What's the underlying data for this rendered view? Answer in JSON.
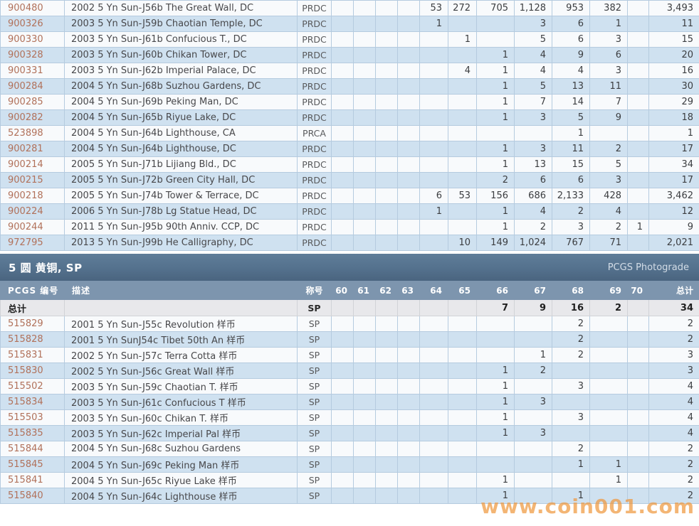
{
  "watermark": "www.coin001.com",
  "colors": {
    "stripe_white": "#f8fafc",
    "stripe_blue": "#cfe1f0",
    "cell_border": "#b5cbdf",
    "pcgs_link": "#b1715a",
    "band_top": "#5f7d99",
    "band_bottom": "#4a647f",
    "header_bg": "#7d95ae",
    "totals_bg": "#e8e8eb",
    "watermark_orange": "#ef9940"
  },
  "section": {
    "title": "5 圆 黄铜, SP",
    "photograde": "PCGS Photograde"
  },
  "table1": {
    "rows": [
      {
        "pcgs": "900480",
        "desc": "2002 5 Yn Sun-J56b The Great Wall, DC",
        "desig": "PRDC",
        "g64": "53",
        "g65": "272",
        "g66": "705",
        "g67": "1,128",
        "g68": "953",
        "g69": "382",
        "total": "3,493"
      },
      {
        "pcgs": "900326",
        "desc": "2003 5 Yn Sun-J59b Chaotian Temple, DC",
        "desig": "PRDC",
        "g64": "1",
        "g67": "3",
        "g68": "6",
        "g69": "1",
        "total": "11"
      },
      {
        "pcgs": "900330",
        "desc": "2003 5 Yn Sun-J61b Confucious T., DC",
        "desig": "PRDC",
        "g65": "1",
        "g67": "5",
        "g68": "6",
        "g69": "3",
        "total": "15"
      },
      {
        "pcgs": "900328",
        "desc": "2003 5 Yn Sun-J60b Chikan Tower, DC",
        "desig": "PRDC",
        "g66": "1",
        "g67": "4",
        "g68": "9",
        "g69": "6",
        "total": "20"
      },
      {
        "pcgs": "900331",
        "desc": "2003 5 Yn Sun-J62b Imperial Palace, DC",
        "desig": "PRDC",
        "g65": "4",
        "g66": "1",
        "g67": "4",
        "g68": "4",
        "g69": "3",
        "total": "16"
      },
      {
        "pcgs": "900284",
        "desc": "2004 5 Yn Sun-J68b Suzhou Gardens, DC",
        "desig": "PRDC",
        "g66": "1",
        "g67": "5",
        "g68": "13",
        "g69": "11",
        "total": "30"
      },
      {
        "pcgs": "900285",
        "desc": "2004 5 Yn Sun-J69b Peking Man, DC",
        "desig": "PRDC",
        "g66": "1",
        "g67": "7",
        "g68": "14",
        "g69": "7",
        "total": "29"
      },
      {
        "pcgs": "900282",
        "desc": "2004 5 Yn Sun-J65b Riyue Lake, DC",
        "desig": "PRDC",
        "g66": "1",
        "g67": "3",
        "g68": "5",
        "g69": "9",
        "total": "18"
      },
      {
        "pcgs": "523898",
        "desc": "2004 5 Yn Sun-J64b Lighthouse, CA",
        "desig": "PRCA",
        "g68": "1",
        "total": "1"
      },
      {
        "pcgs": "900281",
        "desc": "2004 5 Yn Sun-J64b Lighthouse, DC",
        "desig": "PRDC",
        "g66": "1",
        "g67": "3",
        "g68": "11",
        "g69": "2",
        "total": "17"
      },
      {
        "pcgs": "900214",
        "desc": "2005 5 Yn Sun-J71b Lijiang Bld., DC",
        "desig": "PRDC",
        "g66": "1",
        "g67": "13",
        "g68": "15",
        "g69": "5",
        "total": "34"
      },
      {
        "pcgs": "900215",
        "desc": "2005 5 Yn Sun-J72b Green City Hall, DC",
        "desig": "PRDC",
        "g66": "2",
        "g67": "6",
        "g68": "6",
        "g69": "3",
        "total": "17"
      },
      {
        "pcgs": "900218",
        "desc": "2005 5 Yn Sun-J74b Tower & Terrace, DC",
        "desig": "PRDC",
        "g64": "6",
        "g65": "53",
        "g66": "156",
        "g67": "686",
        "g68": "2,133",
        "g69": "428",
        "total": "3,462"
      },
      {
        "pcgs": "900224",
        "desc": "2006 5 Yn Sun-J78b Lg Statue Head, DC",
        "desig": "PRDC",
        "g64": "1",
        "g66": "1",
        "g67": "4",
        "g68": "2",
        "g69": "4",
        "total": "12"
      },
      {
        "pcgs": "900244",
        "desc": "2011 5 Yn Sun-J95b 90th Anniv. CCP, DC",
        "desig": "PRDC",
        "g66": "1",
        "g67": "2",
        "g68": "3",
        "g69": "2",
        "g70": "1",
        "total": "9"
      },
      {
        "pcgs": "972795",
        "desc": "2013 5 Yn Sun-J99b He Calligraphy, DC",
        "desig": "PRDC",
        "g65": "10",
        "g66": "149",
        "g67": "1,024",
        "g68": "767",
        "g69": "71",
        "total": "2,021"
      }
    ]
  },
  "table2": {
    "headers": {
      "pcgs": "PCGS 编号",
      "desc": "描述",
      "desig": "称号",
      "grades": [
        "60",
        "61",
        "62",
        "63",
        "64",
        "65",
        "66",
        "67",
        "68",
        "69",
        "70"
      ],
      "total": "总计"
    },
    "totals": {
      "label": "总计",
      "desig": "SP",
      "g66": "7",
      "g67": "9",
      "g68": "16",
      "g69": "2",
      "total": "34"
    },
    "rows": [
      {
        "pcgs": "515829",
        "desc": "2001 5 Yn Sun-J55c Revolution 样币",
        "desig": "SP",
        "g68": "2",
        "total": "2"
      },
      {
        "pcgs": "515828",
        "desc": "2001 5 Yn SunJ54c Tibet 50th An 样币",
        "desig": "SP",
        "g68": "2",
        "total": "2"
      },
      {
        "pcgs": "515831",
        "desc": "2002 5 Yn Sun-J57c Terra Cotta 样币",
        "desig": "SP",
        "g67": "1",
        "g68": "2",
        "total": "3"
      },
      {
        "pcgs": "515830",
        "desc": "2002 5 Yn Sun-J56c Great Wall 样币",
        "desig": "SP",
        "g66": "1",
        "g67": "2",
        "total": "3"
      },
      {
        "pcgs": "515502",
        "desc": "2003 5 Yn Sun-J59c Chaotian T. 样币",
        "desig": "SP",
        "g66": "1",
        "g68": "3",
        "total": "4"
      },
      {
        "pcgs": "515834",
        "desc": "2003 5 Yn Sun-J61c Confucious T 样币",
        "desig": "SP",
        "g66": "1",
        "g67": "3",
        "total": "4"
      },
      {
        "pcgs": "515503",
        "desc": "2003 5 Yn Sun-J60c Chikan T. 样币",
        "desig": "SP",
        "g66": "1",
        "g68": "3",
        "total": "4"
      },
      {
        "pcgs": "515835",
        "desc": "2003 5 Yn Sun-J62c Imperial Pal 样币",
        "desig": "SP",
        "g66": "1",
        "g67": "3",
        "total": "4"
      },
      {
        "pcgs": "515844",
        "desc": "2004 5 Yn Sun-J68c Suzhou Gardens",
        "desig": "SP",
        "g68": "2",
        "total": "2"
      },
      {
        "pcgs": "515845",
        "desc": "2004 5 Yn Sun-J69c Peking Man 样币",
        "desig": "SP",
        "g68": "1",
        "g69": "1",
        "total": "2"
      },
      {
        "pcgs": "515841",
        "desc": "2004 5 Yn Sun-J65c Riyue Lake 样币",
        "desig": "SP",
        "g66": "1",
        "g69": "1",
        "total": "2"
      },
      {
        "pcgs": "515840",
        "desc": "2004 5 Yn Sun-J64c Lighthouse 样币",
        "desig": "SP",
        "g66": "1",
        "g68": "1",
        "total": "2"
      }
    ]
  }
}
